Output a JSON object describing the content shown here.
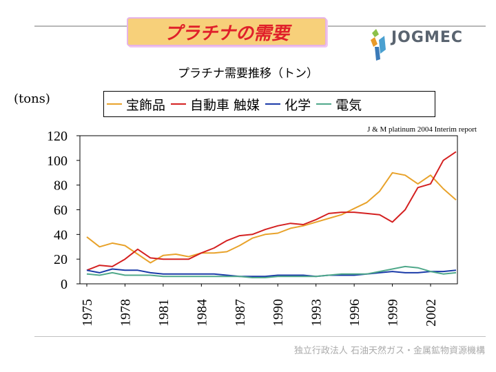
{
  "slide": {
    "title": "プラチナの需要",
    "subtitle": "プラチナ需要推移（トン）",
    "logo_text": "JOGMEC",
    "footer": "独立行政法人 石油天然ガス・金属鉱物資源機構"
  },
  "chart_data": {
    "type": "line",
    "title": "プラチナ需要推移（トン）",
    "ylabel": "(tons)",
    "source": "J & M platinum 2004 Interim report",
    "ylim": [
      0,
      120
    ],
    "yticks": [
      0,
      20,
      40,
      60,
      80,
      100,
      120
    ],
    "grid": false,
    "x": [
      1975,
      1976,
      1977,
      1978,
      1979,
      1980,
      1981,
      1982,
      1983,
      1984,
      1985,
      1986,
      1987,
      1988,
      1989,
      1990,
      1991,
      1992,
      1993,
      1994,
      1995,
      1996,
      1997,
      1998,
      1999,
      2000,
      2001,
      2002,
      2003,
      2004
    ],
    "xticks": [
      "1975",
      "1978",
      "1981",
      "1984",
      "1987",
      "1990",
      "1993",
      "1996",
      "1999",
      "2002"
    ],
    "series": [
      {
        "name": "宝飾品",
        "color": "#e8a22a",
        "values": [
          38,
          30,
          33,
          31,
          24,
          17,
          23,
          24,
          22,
          25,
          25,
          26,
          31,
          37,
          40,
          41,
          45,
          47,
          50,
          53,
          56,
          61,
          66,
          75,
          90,
          88,
          81,
          88,
          77,
          68
        ]
      },
      {
        "name": "自動車 触媒",
        "color": "#d42020",
        "values": [
          11,
          15,
          14,
          20,
          28,
          21,
          20,
          20,
          20,
          25,
          29,
          35,
          39,
          40,
          44,
          47,
          49,
          48,
          52,
          57,
          58,
          58,
          57,
          56,
          50,
          60,
          78,
          81,
          100,
          107
        ]
      },
      {
        "name": "化学",
        "color": "#1a3aa8",
        "values": [
          11,
          9,
          12,
          11,
          11,
          9,
          8,
          8,
          8,
          8,
          8,
          7,
          6,
          6,
          6,
          7,
          7,
          7,
          6,
          7,
          7,
          7,
          8,
          9,
          10,
          9,
          9,
          10,
          10,
          11
        ]
      },
      {
        "name": "電気",
        "color": "#4fa88a",
        "values": [
          8,
          7,
          9,
          7,
          7,
          7,
          6,
          6,
          6,
          6,
          6,
          6,
          6,
          5,
          5,
          6,
          6,
          6,
          6,
          7,
          8,
          8,
          8,
          10,
          12,
          14,
          13,
          10,
          8,
          9
        ]
      }
    ],
    "legend_position": "top"
  }
}
